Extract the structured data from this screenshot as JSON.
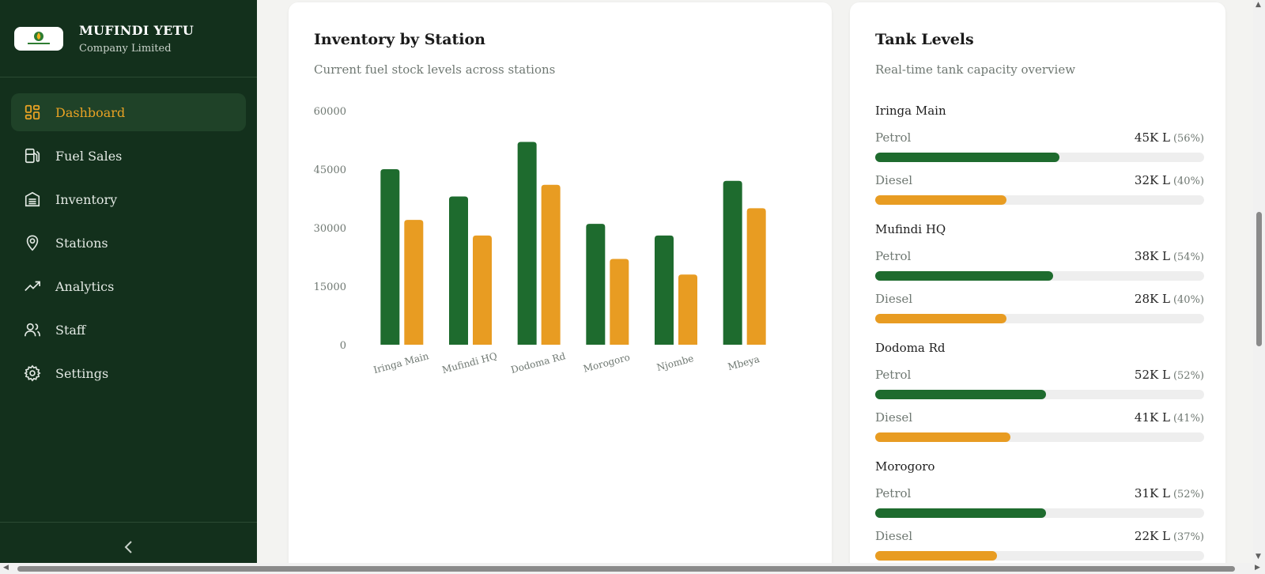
{
  "brand": {
    "title": "MUFINDI YETU",
    "subtitle": "Company Limited",
    "logo_text": "MUFINDI YETU"
  },
  "nav": {
    "items": [
      {
        "label": "Dashboard",
        "icon": "grid-icon",
        "active": true
      },
      {
        "label": "Fuel Sales",
        "icon": "fuel-pump-icon",
        "active": false
      },
      {
        "label": "Inventory",
        "icon": "warehouse-icon",
        "active": false
      },
      {
        "label": "Stations",
        "icon": "map-pin-icon",
        "active": false
      },
      {
        "label": "Analytics",
        "icon": "trending-up-icon",
        "active": false
      },
      {
        "label": "Staff",
        "icon": "users-icon",
        "active": false
      },
      {
        "label": "Settings",
        "icon": "gear-icon",
        "active": false
      }
    ],
    "collapse_icon": "chevron-left-icon"
  },
  "colors": {
    "sidebar_bg": "#13301c",
    "accent": "#e8a224",
    "petrol": "#1e6b2e",
    "diesel": "#e89c22"
  },
  "inventory": {
    "title": "Inventory by Station",
    "subtitle": "Current fuel stock levels across stations"
  },
  "chart_data": {
    "type": "bar",
    "categories": [
      "Iringa Main",
      "Mufindi HQ",
      "Dodoma Rd",
      "Morogoro",
      "Njombe",
      "Mbeya"
    ],
    "series": [
      {
        "values": [
          45000,
          38000,
          52000,
          31000,
          28000,
          42000
        ],
        "color": "#1e6b2e"
      },
      {
        "values": [
          32000,
          28000,
          41000,
          22000,
          18000,
          35000
        ],
        "color": "#e89c22"
      }
    ],
    "yticks": [
      "0",
      "15000",
      "30000",
      "45000",
      "60000"
    ],
    "ylim": [
      0,
      60000
    ],
    "grid": false,
    "title": "",
    "xlabel": "",
    "ylabel": ""
  },
  "tanks": {
    "title": "Tank Levels",
    "subtitle": "Real-time tank capacity overview",
    "stations": [
      {
        "name": "Iringa Main",
        "fuels": [
          {
            "label": "Petrol",
            "amount": "45K L",
            "pct": "(56%)",
            "level": 0.56,
            "type": "petrol"
          },
          {
            "label": "Diesel",
            "amount": "32K L",
            "pct": "(40%)",
            "level": 0.4,
            "type": "diesel"
          }
        ]
      },
      {
        "name": "Mufindi HQ",
        "fuels": [
          {
            "label": "Petrol",
            "amount": "38K L",
            "pct": "(54%)",
            "level": 0.54,
            "type": "petrol"
          },
          {
            "label": "Diesel",
            "amount": "28K L",
            "pct": "(40%)",
            "level": 0.4,
            "type": "diesel"
          }
        ]
      },
      {
        "name": "Dodoma Rd",
        "fuels": [
          {
            "label": "Petrol",
            "amount": "52K L",
            "pct": "(52%)",
            "level": 0.52,
            "type": "petrol"
          },
          {
            "label": "Diesel",
            "amount": "41K L",
            "pct": "(41%)",
            "level": 0.41,
            "type": "diesel"
          }
        ]
      },
      {
        "name": "Morogoro",
        "fuels": [
          {
            "label": "Petrol",
            "amount": "31K L",
            "pct": "(52%)",
            "level": 0.52,
            "type": "petrol"
          },
          {
            "label": "Diesel",
            "amount": "22K L",
            "pct": "(37%)",
            "level": 0.37,
            "type": "diesel"
          }
        ]
      }
    ]
  }
}
